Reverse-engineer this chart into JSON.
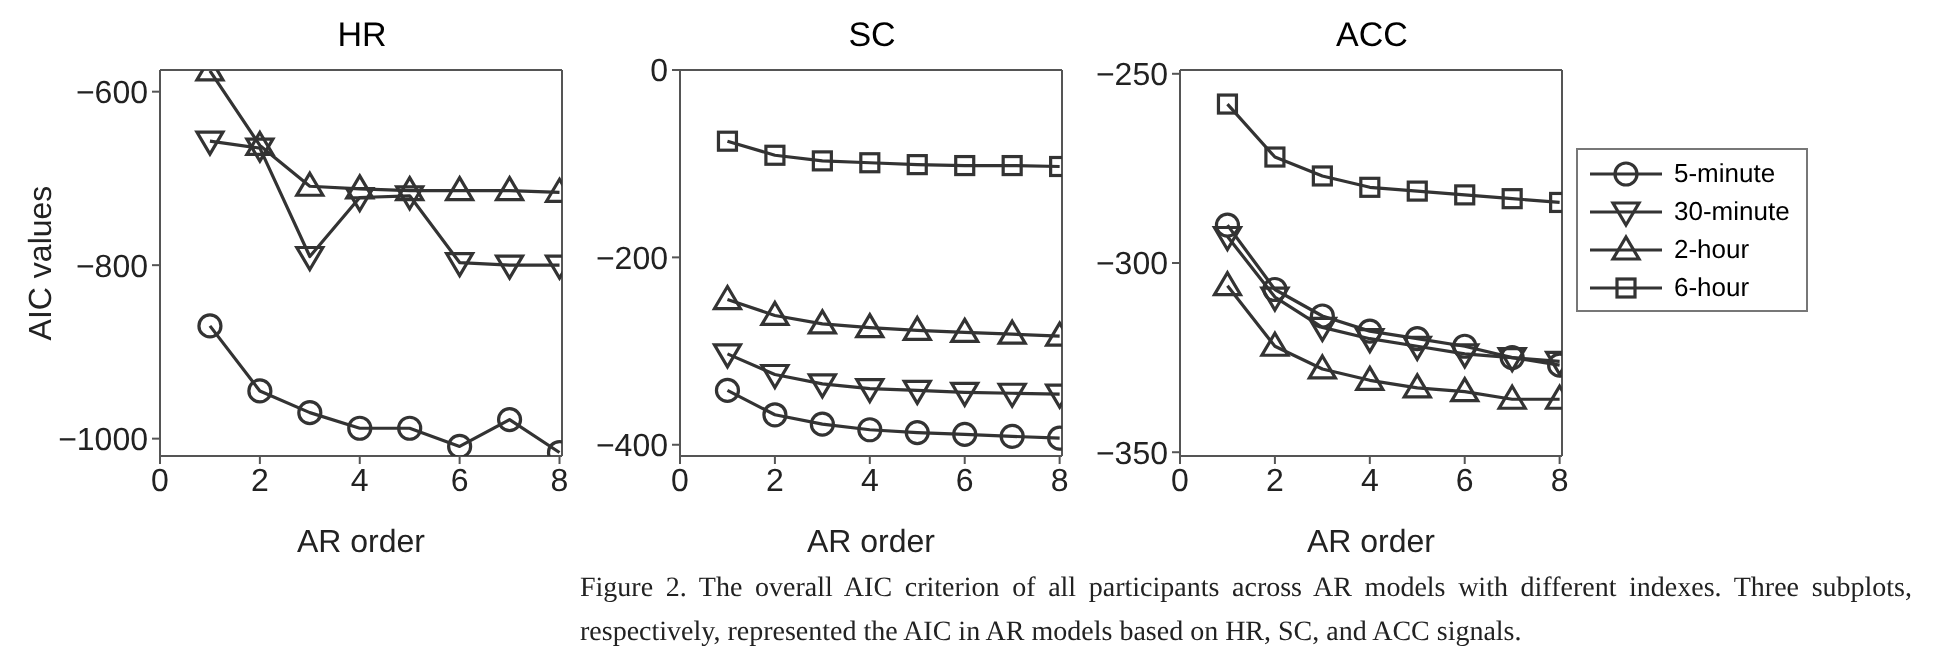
{
  "chart_data": [
    {
      "type": "line",
      "title": "HR",
      "xlabel": "AR order",
      "ylabel": "AIC values",
      "x": [
        1,
        2,
        3,
        4,
        5,
        6,
        7,
        8
      ],
      "xlim": [
        0,
        8.05
      ],
      "xticks": [
        0,
        2,
        4,
        6,
        8
      ],
      "ylim": [
        -1020,
        -575
      ],
      "yticks": [
        -1000,
        -800,
        -600
      ],
      "legend": false,
      "grid": false,
      "series": [
        {
          "color": "#333333",
          "marker": "circle",
          "values": [
            -870,
            -945,
            -970,
            -988,
            -988,
            -1009,
            -978,
            -1016
          ]
        },
        {
          "color": "#333333",
          "marker": "triangle-down",
          "values": [
            -657,
            -665,
            -790,
            -722,
            -720,
            -797,
            -800,
            -800
          ]
        },
        {
          "color": "#333333",
          "marker": "triangle",
          "values": [
            -576,
            -662,
            -709,
            -712,
            -714,
            -714,
            -714,
            -716
          ]
        },
        {
          "color": "#333333",
          "marker": "square",
          "values": [
            null,
            null,
            null,
            null,
            null,
            null,
            null,
            null
          ]
        }
      ]
    },
    {
      "type": "line",
      "title": "SC",
      "xlabel": "AR order",
      "x": [
        1,
        2,
        3,
        4,
        5,
        6,
        7,
        8
      ],
      "xlim": [
        0,
        8.05
      ],
      "xticks": [
        0,
        2,
        4,
        6,
        8
      ],
      "ylim": [
        -412,
        0
      ],
      "yticks": [
        -400,
        -200,
        0
      ],
      "legend": false,
      "grid": false,
      "series": [
        {
          "color": "#333333",
          "marker": "circle",
          "values": [
            -342,
            -368,
            -378,
            -384,
            -387,
            -389,
            -391,
            -393
          ]
        },
        {
          "color": "#333333",
          "marker": "triangle-down",
          "values": [
            -303,
            -325,
            -335,
            -340,
            -342,
            -344,
            -345,
            -346
          ]
        },
        {
          "color": "#333333",
          "marker": "triangle",
          "values": [
            -245,
            -262,
            -271,
            -275,
            -278,
            -280,
            -282,
            -284
          ]
        },
        {
          "color": "#333333",
          "marker": "square",
          "values": [
            -76,
            -91,
            -97,
            -99,
            -101,
            -102,
            -102,
            -103
          ]
        }
      ]
    },
    {
      "type": "line",
      "title": "ACC",
      "xlabel": "AR order",
      "x": [
        1,
        2,
        3,
        4,
        5,
        6,
        7,
        8
      ],
      "xlim": [
        0,
        8.05
      ],
      "xticks": [
        0,
        2,
        4,
        6,
        8
      ],
      "ylim": [
        -351,
        -249
      ],
      "yticks": [
        -350,
        -300,
        -250
      ],
      "legend": "right",
      "grid": false,
      "annotations": [
        "Figure 2. The overall AIC criterion of all participants across AR models with different indexes. Three subplots, respectively, represented the AIC in AR models based on HR, SC, and ACC signals."
      ],
      "series": [
        {
          "name": "5-minute",
          "color": "#333333",
          "marker": "circle",
          "values": [
            -290,
            -307,
            -314,
            -318,
            -320,
            -322,
            -325,
            -327
          ]
        },
        {
          "name": "30-minute",
          "color": "#333333",
          "marker": "triangle-down",
          "values": [
            -293,
            -309,
            -317,
            -320,
            -322,
            -324,
            -325,
            -326
          ]
        },
        {
          "name": "2-hour",
          "color": "#333333",
          "marker": "triangle",
          "values": [
            -306,
            -322,
            -328,
            -331,
            -333,
            -334,
            -336,
            -336
          ]
        },
        {
          "name": "6-hour",
          "color": "#333333",
          "marker": "square",
          "values": [
            -258,
            -272,
            -277,
            -280,
            -281,
            -282,
            -283,
            -284
          ]
        }
      ]
    }
  ]
}
